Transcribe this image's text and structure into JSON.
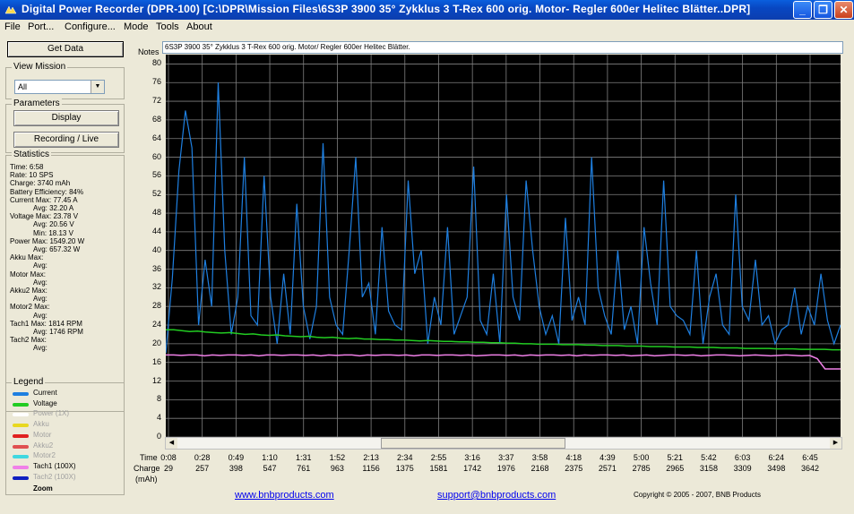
{
  "window": {
    "title": "Digital Power Recorder (DPR-100) [C:\\DPR\\Mission Files\\6S3P 3900 35° Zykklus 3 T-Rex 600 orig. Motor- Regler 600er Helitec Blätter..DPR]",
    "minimize": "_",
    "restore": "❐",
    "close": "✕"
  },
  "menu": {
    "file": "File",
    "port": "Port...",
    "configure": "Configure...",
    "mode": "Mode",
    "tools": "Tools",
    "about": "About"
  },
  "sidebar": {
    "get_data": "Get Data",
    "view_mission_label": "View Mission",
    "view_mission_value": "All",
    "parameters_label": "Parameters",
    "display_button": "Display",
    "recording_button": "Recording / Live",
    "statistics_label": "Statistics",
    "stats": [
      "Time: 6:58",
      "Rate: 10 SPS",
      "Charge: 3740 mAh",
      "Battery Efficiency: 84%",
      "Current Max: 77.45 A",
      "Avg: 32.20 A",
      "Voltage Max: 23.78 V",
      "Avg: 20.56 V",
      "Min: 18.13 V",
      "Power Max: 1549.20 W",
      "Avg: 657.32 W",
      "Akku Max:",
      "Avg:",
      "Motor Max:",
      "Avg:",
      "Akku2 Max:",
      "Avg:",
      "Motor2 Max:",
      "Avg:",
      "Tach1 Max: 1814 RPM",
      "Avg: 1746 RPM",
      "Tach2 Max:",
      "Avg:"
    ],
    "legend_label": "Legend",
    "legend": [
      {
        "name": "Current",
        "color": "#1E7FE0",
        "text_color": "#000000"
      },
      {
        "name": "Voltage",
        "color": "#22CC22",
        "text_color": "#000000"
      },
      {
        "name": "Power     (1X)",
        "color": "#FFFFFF",
        "text_color": "#A0A0A0"
      },
      {
        "name": "Akku",
        "color": "#E8D820",
        "text_color": "#A0A0A0"
      },
      {
        "name": "Motor",
        "color": "#E02020",
        "text_color": "#A0A0A0"
      },
      {
        "name": "Akku2",
        "color": "#E05050",
        "text_color": "#A0A0A0"
      },
      {
        "name": "Motor2",
        "color": "#40D8E0",
        "text_color": "#A0A0A0"
      },
      {
        "name": "Tach1   (100X)",
        "color": "#F080E8",
        "text_color": "#000000"
      },
      {
        "name": "Tach2   (100X)",
        "color": "#1020C0",
        "text_color": "#A0A0A0"
      }
    ],
    "zoom_label": "Zoom"
  },
  "chart": {
    "notes_label": "Notes",
    "notes_value": "6S3P 3900 35° Zykklus 3 T-Rex 600 orig. Motor/ Regler 600er Helitec Blätter.",
    "y_ticks": [
      "80",
      "76",
      "72",
      "68",
      "64",
      "60",
      "56",
      "52",
      "48",
      "44",
      "40",
      "36",
      "32",
      "28",
      "24",
      "20",
      "16",
      "12",
      "8",
      "4",
      "0"
    ],
    "time_label": "Time",
    "charge_label": "Charge",
    "charge_unit": "(mAh)",
    "time_ticks": [
      "0:08",
      "0:28",
      "0:49",
      "1:10",
      "1:31",
      "1:52",
      "2:13",
      "2:34",
      "2:55",
      "3:16",
      "3:37",
      "3:58",
      "4:18",
      "4:39",
      "5:00",
      "5:21",
      "5:42",
      "6:03",
      "6:24",
      "6:45"
    ],
    "charge_ticks": [
      "29",
      "257",
      "398",
      "547",
      "761",
      "963",
      "1156",
      "1375",
      "1581",
      "1742",
      "1976",
      "2168",
      "2375",
      "2571",
      "2785",
      "2965",
      "3158",
      "3309",
      "3498",
      "3642"
    ]
  },
  "chart_data": {
    "type": "line",
    "ylim": [
      0,
      82
    ],
    "x_label": "Time",
    "series": [
      {
        "name": "Current",
        "color": "#1E7FE0",
        "values": [
          18,
          34,
          57,
          70,
          62,
          24,
          38,
          28,
          76,
          40,
          22,
          30,
          60,
          26,
          24,
          56,
          30,
          20,
          35,
          22,
          50,
          28,
          21,
          28,
          63,
          30,
          24,
          22,
          40,
          60,
          30,
          33,
          22,
          45,
          27,
          24,
          23,
          55,
          35,
          40,
          20,
          30,
          24,
          45,
          22,
          26,
          30,
          58,
          25,
          22,
          35,
          20,
          52,
          30,
          25,
          55,
          40,
          28,
          22,
          26,
          20,
          47,
          25,
          30,
          24,
          60,
          32,
          26,
          22,
          40,
          23,
          28,
          20,
          45,
          33,
          24,
          55,
          28,
          26,
          25,
          22,
          40,
          20,
          30,
          35,
          24,
          22,
          52,
          28,
          25,
          38,
          24,
          26,
          20,
          23,
          24,
          32,
          22,
          28,
          24,
          35,
          25,
          20,
          24
        ]
      },
      {
        "name": "Voltage",
        "color": "#22CC22",
        "values": [
          23.0,
          23.0,
          22.8,
          22.6,
          22.7,
          22.5,
          22.4,
          22.3,
          22.4,
          22.2,
          22.0,
          22.1,
          21.9,
          21.8,
          21.9,
          21.7,
          21.6,
          21.5,
          21.6,
          21.4,
          21.3,
          21.4,
          21.2,
          21.1,
          21.2,
          21.0,
          21.0,
          20.9,
          20.9,
          20.8,
          20.8,
          20.7,
          20.6,
          20.7,
          20.6,
          20.5,
          20.5,
          20.4,
          20.4,
          20.3,
          20.3,
          20.2,
          20.2,
          20.1,
          20.1,
          20.0,
          20.0,
          19.9,
          19.9,
          19.9,
          19.8,
          19.8,
          19.8,
          19.7,
          19.7,
          19.6,
          19.6,
          19.6,
          19.5,
          19.5,
          19.5,
          19.4,
          19.4,
          19.4,
          19.3,
          19.3,
          19.3,
          19.2,
          19.2,
          19.2,
          19.1,
          19.1,
          19.1,
          19.0,
          19.0,
          19.0,
          19.0,
          18.9,
          18.9,
          18.9,
          18.8,
          18.8,
          18.8,
          18.8,
          18.7,
          18.7
        ]
      },
      {
        "name": "Tach1",
        "color": "#F080E8",
        "values": [
          17.6,
          17.6,
          17.5,
          17.6,
          17.6,
          17.4,
          17.6,
          17.5,
          17.6,
          17.6,
          17.5,
          17.6,
          17.4,
          17.6,
          17.6,
          17.5,
          17.6,
          17.6,
          17.5,
          17.6,
          17.4,
          17.6,
          17.5,
          17.6,
          17.6,
          17.4,
          17.6,
          17.5,
          17.6,
          17.6,
          17.5,
          17.6,
          17.4,
          17.6,
          17.6,
          17.5,
          17.6,
          17.6,
          17.5,
          17.6,
          17.4,
          17.5,
          17.6,
          17.6,
          17.5,
          17.6,
          17.4,
          17.6,
          17.5,
          17.6,
          17.6,
          17.5,
          17.6,
          17.4,
          17.6,
          17.5,
          17.6,
          17.6,
          17.5,
          17.6,
          17.4,
          17.5,
          17.6,
          17.4,
          17.5,
          17.6,
          17.6,
          17.5,
          17.6,
          17.4,
          17.5,
          17.6,
          17.6,
          17.5,
          17.4,
          17.5,
          17.6,
          17.5,
          17.4,
          17.5,
          17.6,
          17.5,
          17.4,
          17.5,
          16.8,
          14.6,
          14.6,
          14.6
        ]
      }
    ]
  },
  "footer": {
    "website": "www.bnbproducts.com",
    "support": "support@bnbproducts.com",
    "copyright": "Copyright © 2005 - 2007, BNB Products"
  }
}
